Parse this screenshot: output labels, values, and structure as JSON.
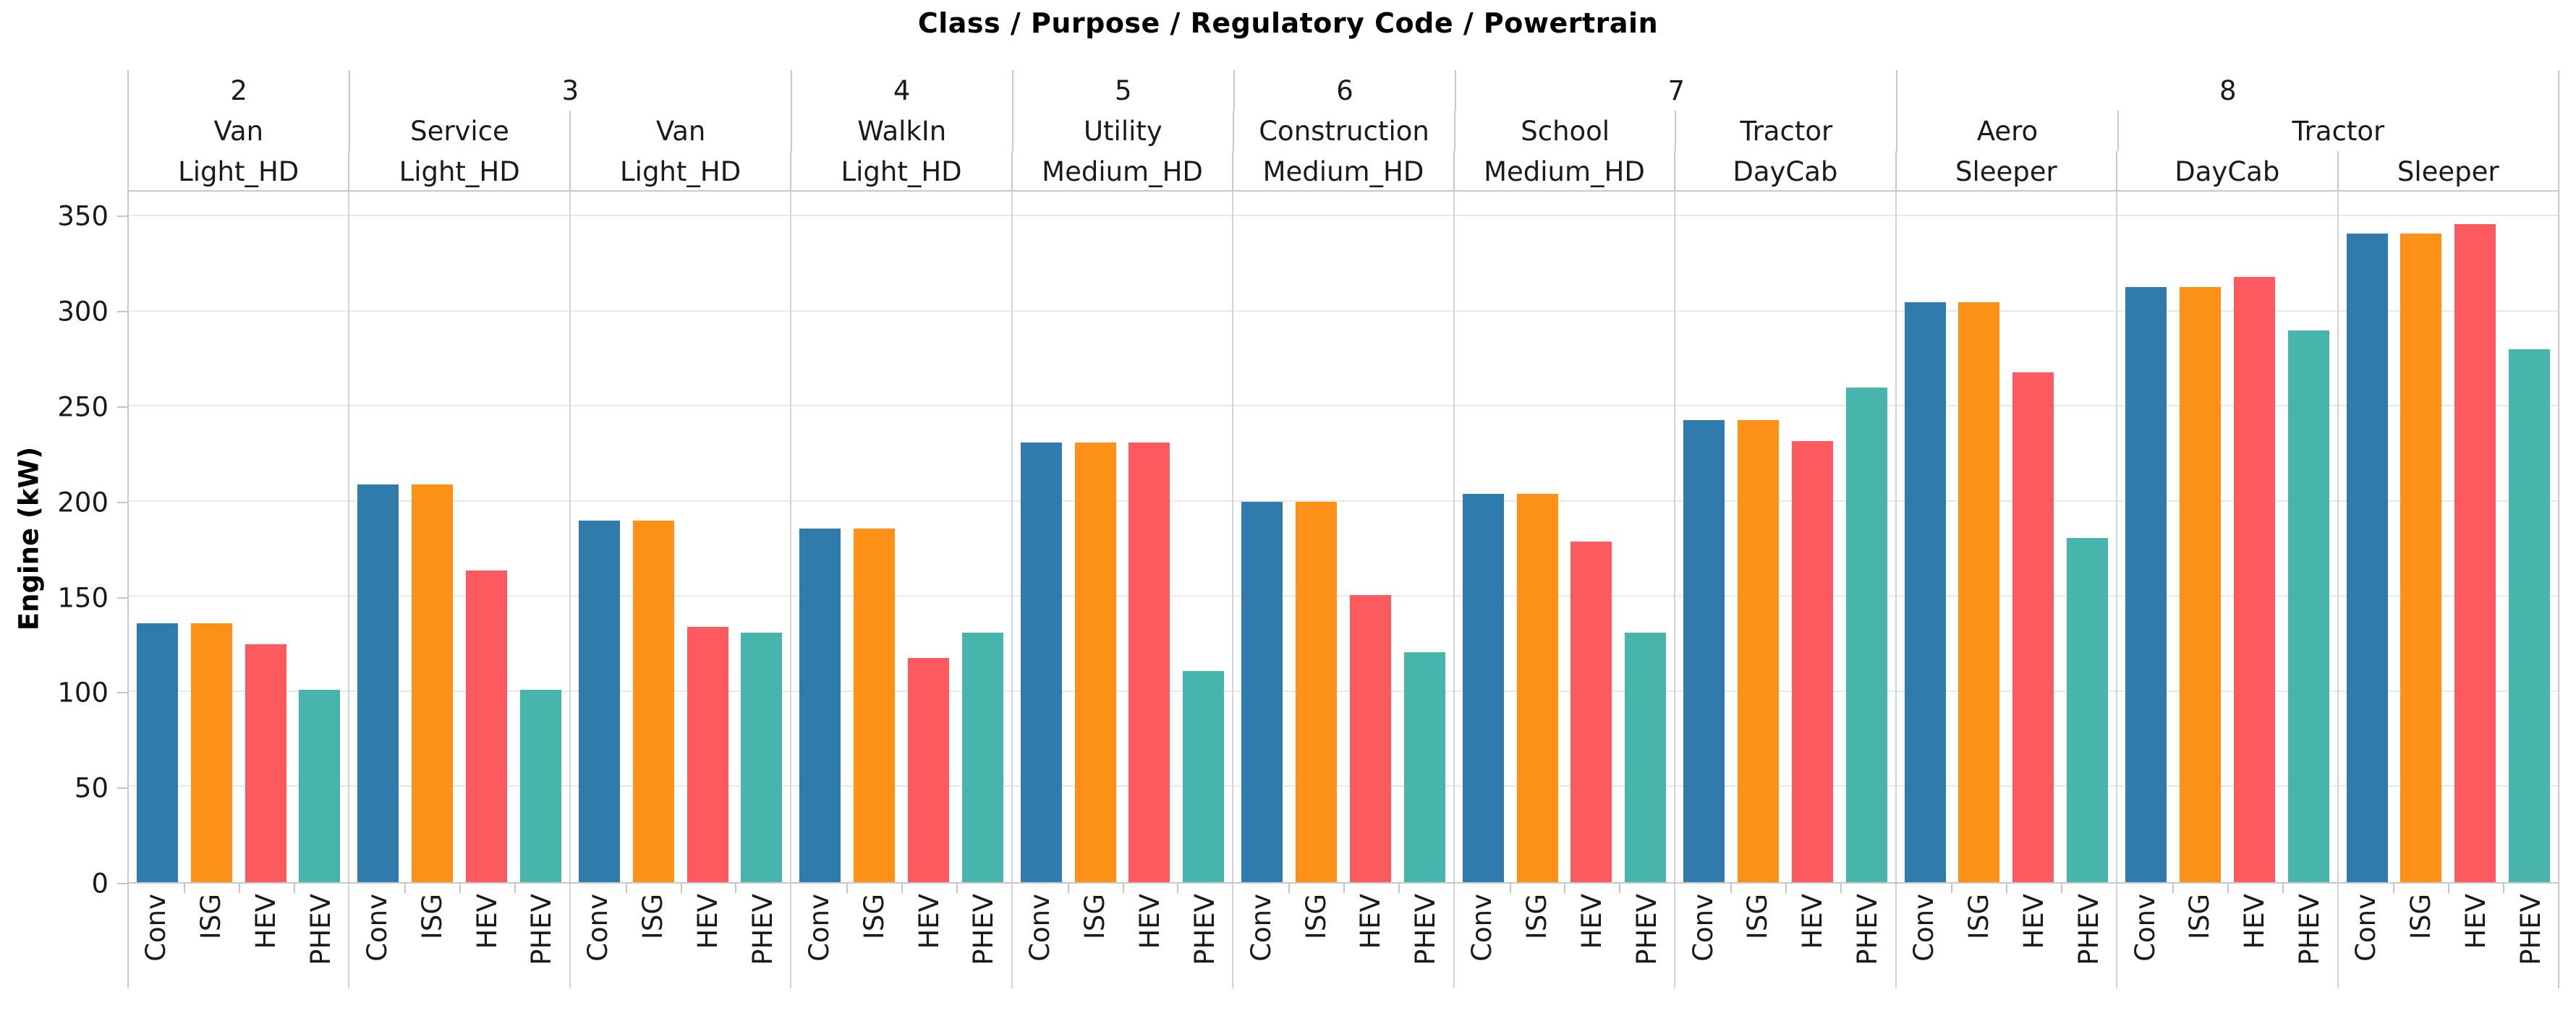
{
  "title": "Class / Purpose / Regulatory Code / Powertrain",
  "y_axis": {
    "label": "Engine (kW)",
    "ticks": [
      0,
      50,
      100,
      150,
      200,
      250,
      300,
      350
    ],
    "max": 363
  },
  "chart_data": {
    "type": "bar",
    "title": "Class / Purpose / Regulatory Code / Powertrain",
    "ylabel": "Engine (kW)",
    "ylim": [
      0,
      363
    ],
    "grid": true,
    "legend": "none",
    "categories": [
      "Conv",
      "ISG",
      "HEV",
      "PHEV"
    ],
    "colors": [
      "#2E7BAC",
      "#FD9017",
      "#FC5A5E",
      "#48B5AC"
    ],
    "groups": [
      {
        "class": "2",
        "purpose": "Van",
        "regulatory_code": "Light_HD",
        "values": [
          136,
          136,
          125,
          101
        ]
      },
      {
        "class": "3",
        "purpose": "Service",
        "regulatory_code": "Light_HD",
        "values": [
          209,
          209,
          164,
          101
        ]
      },
      {
        "class": "3",
        "purpose": "Van",
        "regulatory_code": "Light_HD",
        "values": [
          190,
          190,
          134,
          131
        ]
      },
      {
        "class": "4",
        "purpose": "WalkIn",
        "regulatory_code": "Light_HD",
        "values": [
          186,
          186,
          118,
          131
        ]
      },
      {
        "class": "5",
        "purpose": "Utility",
        "regulatory_code": "Medium_HD",
        "values": [
          231,
          231,
          231,
          111
        ]
      },
      {
        "class": "6",
        "purpose": "Construction",
        "regulatory_code": "Medium_HD",
        "values": [
          200,
          200,
          151,
          121
        ]
      },
      {
        "class": "7",
        "purpose": "School",
        "regulatory_code": "Medium_HD",
        "values": [
          204,
          204,
          179,
          131
        ]
      },
      {
        "class": "7",
        "purpose": "Tractor",
        "regulatory_code": "DayCab",
        "values": [
          243,
          243,
          232,
          260
        ]
      },
      {
        "class": "8",
        "purpose": "Aero",
        "regulatory_code": "Sleeper",
        "values": [
          305,
          305,
          268,
          181
        ]
      },
      {
        "class": "8",
        "purpose": "Tractor",
        "regulatory_code": "DayCab",
        "values": [
          313,
          313,
          318,
          290
        ]
      },
      {
        "class": "8",
        "purpose": "Tractor",
        "regulatory_code": "Sleeper",
        "values": [
          341,
          341,
          346,
          280
        ]
      }
    ]
  }
}
